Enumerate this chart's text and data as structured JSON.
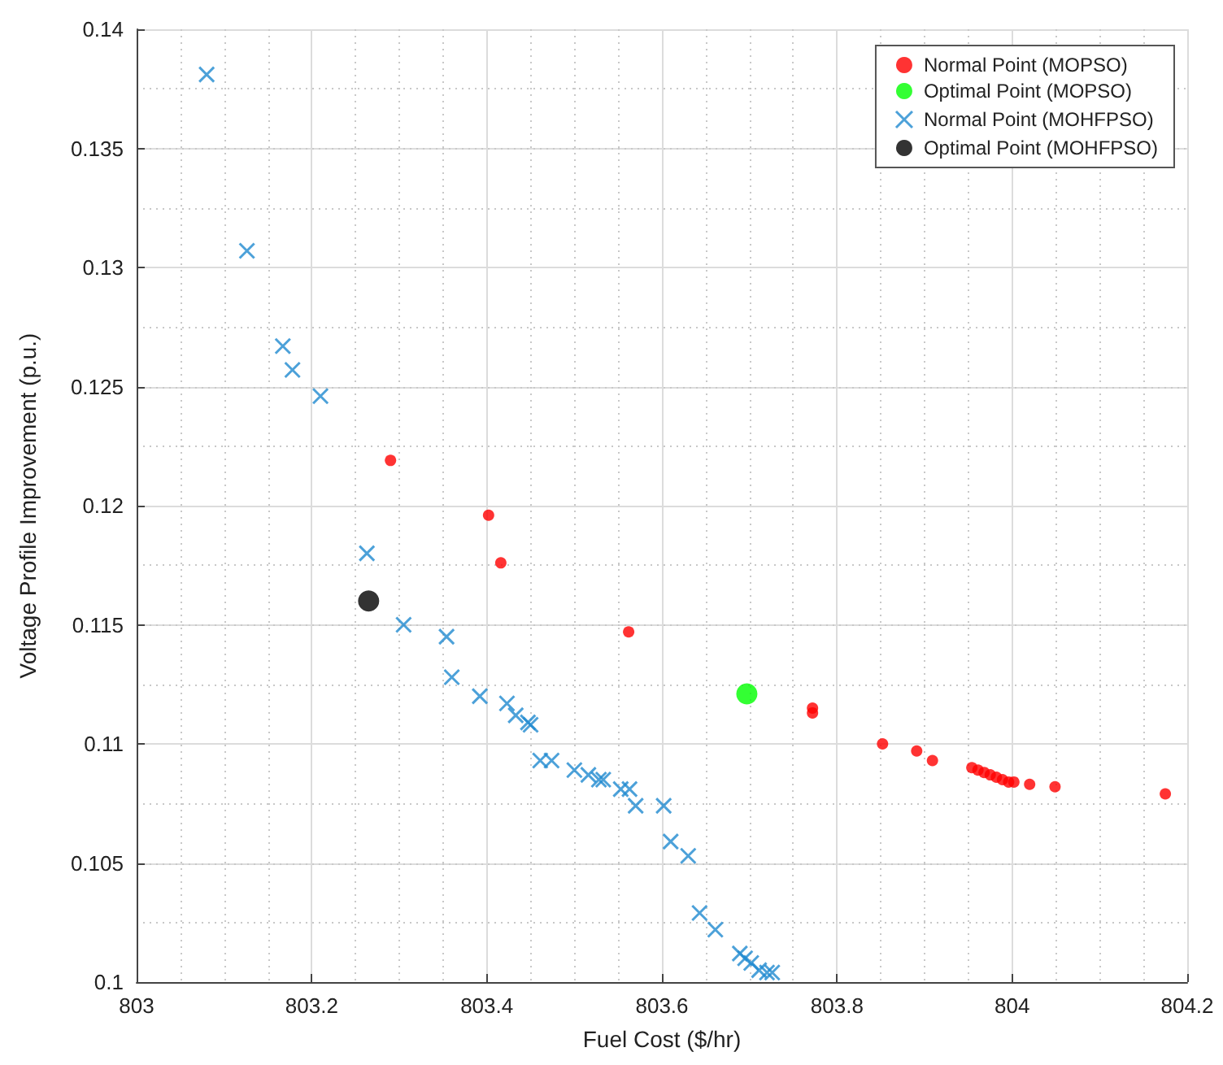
{
  "chart_data": {
    "type": "scatter",
    "xlabel": "Fuel Cost ($/hr)",
    "ylabel": "Voltage Profile Improvement (p.u.)",
    "xlim": [
      803,
      804.2
    ],
    "xticks": [
      803,
      803.2,
      803.4,
      803.6,
      803.8,
      804,
      804.2
    ],
    "ylim": [
      0.1,
      0.14
    ],
    "yticks": [
      0.1,
      0.105,
      0.11,
      0.115,
      0.12,
      0.125,
      0.13,
      0.135,
      0.14
    ],
    "grid": true,
    "legend": "top right",
    "series": [
      {
        "name": "Normal Point (MOPSO)",
        "color": "#ff0000",
        "marker": "circle",
        "x": [
          803.29,
          803.402,
          803.416,
          803.562,
          803.772,
          803.772,
          803.852,
          803.891,
          803.909,
          803.954,
          803.961,
          803.968,
          803.975,
          803.982,
          803.989,
          803.996,
          804.002,
          804.02,
          804.049,
          804.175
        ],
        "values": [
          0.1219,
          0.1196,
          0.1176,
          0.1147,
          0.1115,
          0.1113,
          0.11,
          0.1097,
          0.1093,
          0.109,
          0.1089,
          0.1088,
          0.1087,
          0.1086,
          0.1085,
          0.1084,
          0.1084,
          0.1083,
          0.1082,
          0.1079
        ]
      },
      {
        "name": "Optimal Point (MOPSO)",
        "color": "#00ff00",
        "marker": "circle",
        "x": [
          803.697
        ],
        "values": [
          0.1121
        ]
      },
      {
        "name": "Normal Point (MOHFPSO)",
        "color": "#1f8ad0",
        "marker": "cross",
        "x": [
          803.08,
          803.126,
          803.167,
          803.178,
          803.21,
          803.263,
          803.305,
          803.354,
          803.36,
          803.392,
          803.423,
          803.433,
          803.447,
          803.45,
          803.461,
          803.474,
          803.5,
          803.516,
          803.528,
          803.533,
          803.553,
          803.563,
          803.57,
          803.602,
          803.61,
          803.63,
          803.643,
          803.661,
          803.689,
          803.695,
          803.702,
          803.711,
          803.72,
          803.726
        ],
        "values": [
          0.1381,
          0.1307,
          0.1267,
          0.1257,
          0.1246,
          0.118,
          0.115,
          0.1145,
          0.1128,
          0.112,
          0.1117,
          0.1112,
          0.1109,
          0.1108,
          0.1093,
          0.1093,
          0.1089,
          0.1087,
          0.1085,
          0.1085,
          0.1081,
          0.1081,
          0.1074,
          0.1074,
          0.1059,
          0.1053,
          0.1029,
          0.1022,
          0.1012,
          0.101,
          0.1008,
          0.1005,
          0.1004,
          0.1004
        ]
      },
      {
        "name": "Optimal Point (MOHFPSO)",
        "color": "#000000",
        "marker": "circle",
        "x": [
          803.265
        ],
        "values": [
          0.116
        ]
      }
    ]
  }
}
